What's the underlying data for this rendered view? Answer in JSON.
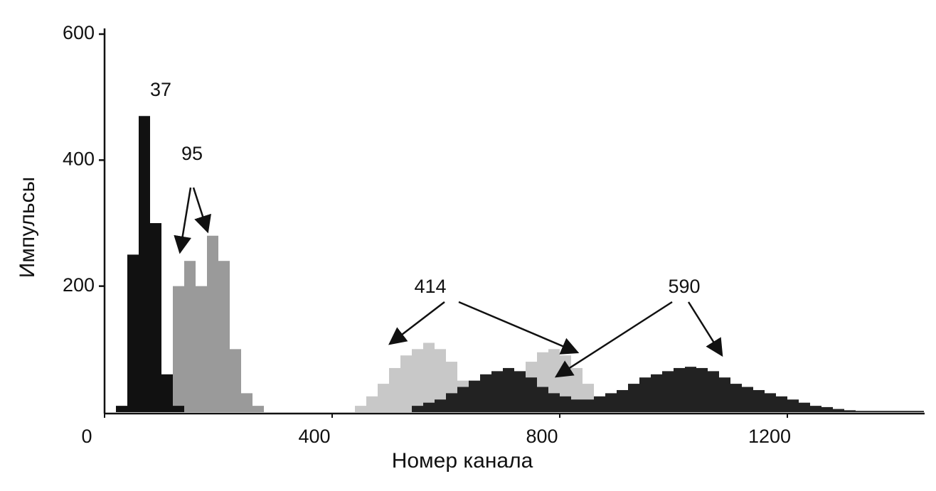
{
  "chart_data": {
    "type": "histogram",
    "x_label": "Номер канала",
    "y_label": "Импульсы",
    "bins": [
      0,
      20,
      40,
      60,
      80,
      100,
      120,
      140,
      160,
      180,
      200,
      220,
      240,
      260,
      280,
      300,
      320,
      340,
      360,
      380,
      400,
      420,
      440,
      460,
      480,
      500,
      520,
      540,
      560,
      580,
      600,
      620,
      640,
      660,
      680,
      700,
      720,
      740,
      760,
      780,
      800,
      820,
      840,
      860,
      880,
      900,
      920,
      940,
      960,
      980,
      1000,
      1020,
      1040,
      1060,
      1080,
      1100,
      1120,
      1140,
      1160,
      1180,
      1200,
      1220,
      1240,
      1260,
      1280,
      1300,
      1320,
      1340,
      1360,
      1380,
      1400,
      1420,
      1440
    ],
    "series": [
      {
        "name": "95",
        "color": "#9a9a9a",
        "values": [
          0,
          0,
          0,
          0,
          0,
          40,
          200,
          240,
          200,
          280,
          240,
          100,
          30,
          10,
          0,
          0,
          0,
          0,
          0,
          0,
          0,
          0,
          0,
          0,
          0,
          0,
          0,
          0,
          0,
          0,
          0,
          0,
          0,
          0,
          0,
          0,
          0,
          0,
          0,
          0,
          0,
          0,
          0,
          0,
          0,
          0,
          0,
          0,
          0,
          0,
          0,
          0,
          0,
          0,
          0,
          0,
          0,
          0,
          0,
          0,
          0,
          0,
          0,
          0,
          0,
          0,
          0,
          0,
          0,
          0,
          0,
          0
        ]
      },
      {
        "name": "414",
        "color": "#c8c8c8",
        "values": [
          0,
          0,
          0,
          0,
          0,
          0,
          0,
          0,
          0,
          0,
          0,
          0,
          0,
          0,
          0,
          0,
          0,
          0,
          0,
          0,
          0,
          0,
          10,
          25,
          45,
          70,
          90,
          100,
          110,
          100,
          80,
          50,
          30,
          20,
          25,
          40,
          60,
          80,
          95,
          100,
          90,
          70,
          45,
          25,
          10,
          0,
          0,
          0,
          0,
          0,
          0,
          0,
          0,
          0,
          0,
          0,
          0,
          0,
          0,
          0,
          0,
          0,
          0,
          0,
          0,
          0,
          0,
          0,
          0,
          0,
          0,
          0
        ]
      },
      {
        "name": "590",
        "color": "#222222",
        "values": [
          0,
          0,
          0,
          0,
          0,
          0,
          0,
          0,
          0,
          0,
          0,
          0,
          0,
          0,
          0,
          0,
          0,
          0,
          0,
          0,
          0,
          0,
          0,
          0,
          0,
          0,
          0,
          10,
          15,
          20,
          30,
          40,
          50,
          60,
          65,
          70,
          65,
          55,
          40,
          30,
          25,
          20,
          20,
          25,
          30,
          35,
          45,
          55,
          60,
          65,
          70,
          72,
          70,
          65,
          55,
          45,
          40,
          35,
          30,
          25,
          20,
          15,
          10,
          8,
          5,
          3,
          2,
          2,
          2,
          2,
          2,
          2
        ]
      },
      {
        "name": "37",
        "color": "#111111",
        "values": [
          0,
          10,
          250,
          470,
          300,
          60,
          10,
          0,
          0,
          0,
          0,
          0,
          0,
          0,
          0,
          0,
          0,
          0,
          0,
          0,
          0,
          0,
          0,
          0,
          0,
          0,
          0,
          0,
          0,
          0,
          0,
          0,
          0,
          0,
          0,
          0,
          0,
          0,
          0,
          0,
          0,
          0,
          0,
          0,
          0,
          0,
          0,
          0,
          0,
          0,
          0,
          0,
          0,
          0,
          0,
          0,
          0,
          0,
          0,
          0,
          0,
          0,
          0,
          0,
          0,
          0,
          0,
          0,
          0,
          0,
          0,
          0
        ]
      }
    ],
    "xlim": [
      0,
      1440
    ],
    "ylim": [
      0,
      600
    ],
    "xticks": [
      0,
      400,
      800,
      1200
    ],
    "yticks": [
      200,
      400,
      600
    ]
  }
}
